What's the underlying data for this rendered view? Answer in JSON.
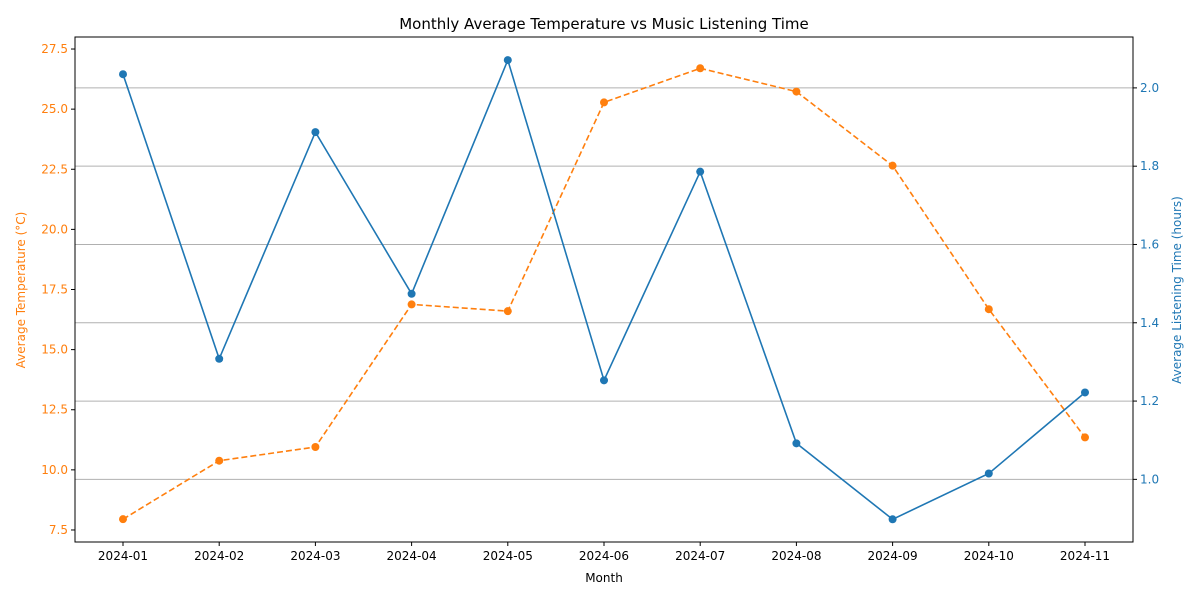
{
  "chart_data": {
    "type": "line",
    "title": "Monthly Average Temperature vs Music Listening Time",
    "xlabel": "Month",
    "categories": [
      "2024-01",
      "2024-02",
      "2024-03",
      "2024-04",
      "2024-05",
      "2024-06",
      "2024-07",
      "2024-08",
      "2024-09",
      "2024-10",
      "2024-11"
    ],
    "grid": "horizontal-right-axis",
    "y_left": {
      "label": "Average Temperature (°C)",
      "color": "#ff7f0e",
      "lim": [
        7.0,
        28.0
      ],
      "ticks": [
        "7.5",
        "10.0",
        "12.5",
        "15.0",
        "17.5",
        "20.0",
        "22.5",
        "25.0",
        "27.5"
      ]
    },
    "y_right": {
      "label": "Average Listening Time (hours)",
      "color": "#1f77b4",
      "lim": [
        0.84,
        2.13
      ],
      "ticks": [
        "1.0",
        "1.2",
        "1.4",
        "1.6",
        "1.8",
        "2.0"
      ]
    },
    "series": [
      {
        "axis": "left",
        "color": "#ff7f0e",
        "style": "dashed",
        "marker": "circle",
        "values": [
          7.95,
          10.38,
          10.95,
          16.88,
          16.6,
          25.28,
          26.7,
          25.73,
          22.65,
          16.68,
          11.35
        ]
      },
      {
        "axis": "right",
        "color": "#1f77b4",
        "style": "solid",
        "marker": "circle",
        "values": [
          2.035,
          1.308,
          1.887,
          1.474,
          2.071,
          1.253,
          1.786,
          1.092,
          0.898,
          1.015,
          1.222
        ]
      }
    ]
  }
}
